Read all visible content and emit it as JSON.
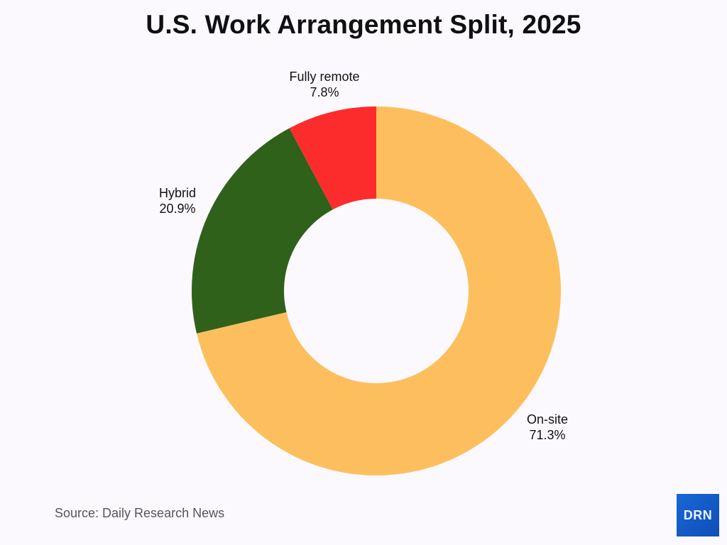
{
  "header": {
    "title": "U.S. Work Arrangement Split, 2025"
  },
  "footer": {
    "source": "Source: Daily Research News",
    "logo_text": "DRN"
  },
  "labels": {
    "fully_remote": {
      "name": "Fully remote",
      "value": "7.8%"
    },
    "hybrid": {
      "name": "Hybrid",
      "value": "20.9%"
    },
    "onsite": {
      "name": "On-site",
      "value": "71.3%"
    }
  },
  "colors": {
    "onsite": "#fdbf5e",
    "hybrid": "#2f611a",
    "fully_remote": "#fd2c2c",
    "background": "#fbf9fd",
    "logo": "#1660cc"
  },
  "chart_data": {
    "type": "pie",
    "subtype": "donut",
    "title": "U.S. Work Arrangement Split, 2025",
    "categories": [
      "On-site",
      "Hybrid",
      "Fully remote"
    ],
    "values": [
      71.3,
      20.9,
      7.8
    ],
    "unit": "%",
    "colors": [
      "#fdbf5e",
      "#2f611a",
      "#fd2c2c"
    ],
    "start_angle": "12 o'clock",
    "direction": "clockwise",
    "legend": "none (direct labels)",
    "source": "Source: Daily Research News"
  }
}
